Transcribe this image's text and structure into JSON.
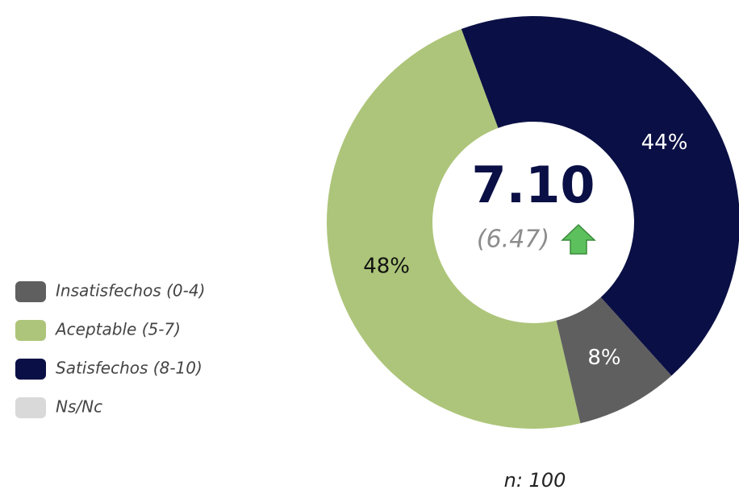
{
  "chart_data": {
    "type": "donut",
    "categories": [
      "Insatisfechos (0-4)",
      "Aceptable (5-7)",
      "Satisfechos (8-10)",
      "Ns/Nc"
    ],
    "values": [
      8,
      48,
      44,
      0
    ],
    "value_labels": [
      "8%",
      "48%",
      "44%",
      null
    ],
    "colors": [
      "#5f5f5f",
      "#adc57a",
      "#0a1045",
      "#d9d9d9"
    ],
    "center_text": "7.10",
    "center_subtext": "(6.47)",
    "note": "n: 100"
  }
}
